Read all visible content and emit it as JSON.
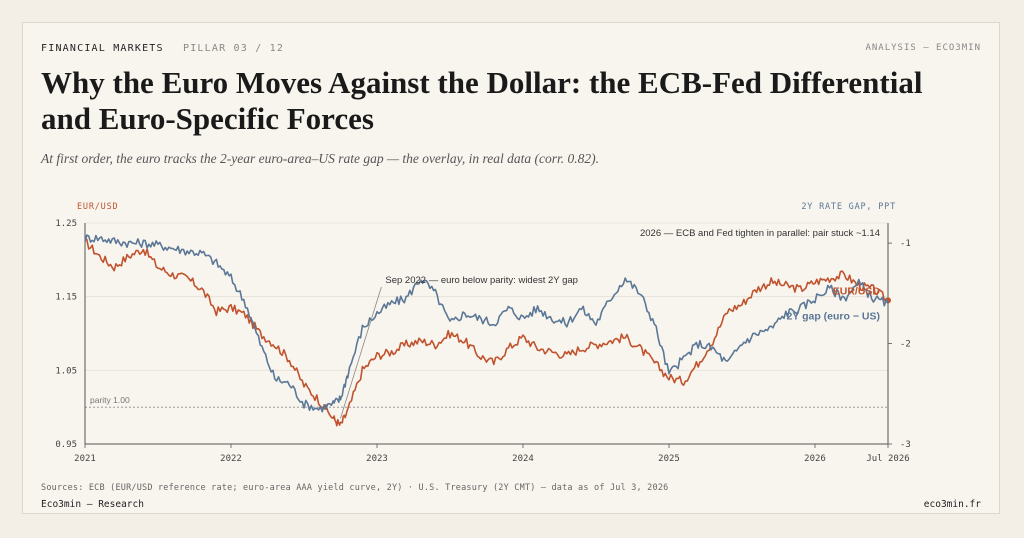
{
  "header": {
    "section": "FINANCIAL MARKETS",
    "pillar": "PILLAR 03 / 12",
    "analysis": "ANALYSIS — ECO3MIN"
  },
  "title": "Why the Euro Moves Against the Dollar: the ECB-Fed Differential and Euro-Specific Forces",
  "subtitle": "At first order, the euro tracks the 2-year euro-area–US rate gap — the overlay, in real data (corr. 0.82).",
  "footer": {
    "sources": "Sources: ECB (EUR/USD reference rate; euro-area AAA yield curve, 2Y) · U.S. Treasury (2Y CMT) — data as of Jul 3, 2026",
    "brand": "Eco3min — Research",
    "site": "eco3min.fr"
  },
  "colors": {
    "eurusd": "#c0532d",
    "gap": "#5b7796",
    "parity": "#8a8a8a"
  },
  "chart_data": {
    "type": "line",
    "left_axis_label": "EUR/USD",
    "right_axis_label": "2Y RATE GAP, PPT",
    "left_ylim": [
      0.95,
      1.25
    ],
    "right_ylim": [
      -3,
      -0.8
    ],
    "left_ticks": [
      "1.25",
      "1.15",
      "1.05",
      "0.95"
    ],
    "right_ticks": [
      "-1",
      "-2",
      "-3"
    ],
    "xlim": [
      2021.0,
      2026.5
    ],
    "x_ticks": [
      {
        "x": 2021,
        "label": "2021"
      },
      {
        "x": 2022,
        "label": "2022"
      },
      {
        "x": 2023,
        "label": "2023"
      },
      {
        "x": 2024,
        "label": "2024"
      },
      {
        "x": 2025,
        "label": "2025"
      },
      {
        "x": 2026,
        "label": "2026"
      },
      {
        "x": 2026.5,
        "label": "Jul 2026"
      }
    ],
    "parity": {
      "value": 1.0,
      "label": "parity 1.00"
    },
    "annotations": [
      {
        "text": "2026 — ECB and Fed tighten in parallel: pair stuck ~1.14"
      },
      {
        "text": "Sep 2022 — euro below parity: widest 2Y gap",
        "x": 2022.75,
        "y": 0.985
      }
    ],
    "series": [
      {
        "name": "EUR/USD",
        "axis": "left",
        "x": [
          2021.0,
          2021.1,
          2021.2,
          2021.3,
          2021.4,
          2021.5,
          2021.6,
          2021.7,
          2021.8,
          2021.9,
          2022.0,
          2022.1,
          2022.2,
          2022.3,
          2022.4,
          2022.5,
          2022.6,
          2022.7,
          2022.75,
          2022.8,
          2022.9,
          2023.0,
          2023.1,
          2023.2,
          2023.3,
          2023.4,
          2023.5,
          2023.6,
          2023.7,
          2023.8,
          2023.9,
          2024.0,
          2024.1,
          2024.2,
          2024.3,
          2024.4,
          2024.5,
          2024.6,
          2024.7,
          2024.8,
          2024.9,
          2025.0,
          2025.1,
          2025.2,
          2025.3,
          2025.4,
          2025.5,
          2025.6,
          2025.7,
          2025.8,
          2025.9,
          2026.0,
          2026.1,
          2026.2,
          2026.3,
          2026.4,
          2026.5
        ],
        "values": [
          1.225,
          1.205,
          1.19,
          1.205,
          1.215,
          1.19,
          1.18,
          1.175,
          1.16,
          1.13,
          1.135,
          1.125,
          1.1,
          1.085,
          1.065,
          1.03,
          1.01,
          0.985,
          0.975,
          0.995,
          1.05,
          1.07,
          1.075,
          1.085,
          1.09,
          1.085,
          1.1,
          1.09,
          1.07,
          1.06,
          1.08,
          1.095,
          1.08,
          1.075,
          1.07,
          1.08,
          1.085,
          1.09,
          1.095,
          1.08,
          1.06,
          1.04,
          1.035,
          1.06,
          1.09,
          1.13,
          1.14,
          1.16,
          1.17,
          1.165,
          1.16,
          1.17,
          1.175,
          1.18,
          1.165,
          1.16,
          1.145
        ]
      },
      {
        "name": "2Y gap (euro − US)",
        "axis": "right",
        "x": [
          2021.0,
          2021.1,
          2021.2,
          2021.3,
          2021.4,
          2021.5,
          2021.6,
          2021.7,
          2021.8,
          2021.9,
          2022.0,
          2022.1,
          2022.2,
          2022.3,
          2022.4,
          2022.5,
          2022.6,
          2022.7,
          2022.75,
          2022.8,
          2022.9,
          2023.0,
          2023.1,
          2023.2,
          2023.3,
          2023.4,
          2023.5,
          2023.6,
          2023.7,
          2023.8,
          2023.9,
          2024.0,
          2024.1,
          2024.2,
          2024.3,
          2024.4,
          2024.5,
          2024.6,
          2024.7,
          2024.8,
          2024.9,
          2025.0,
          2025.1,
          2025.2,
          2025.3,
          2025.4,
          2025.5,
          2025.6,
          2025.7,
          2025.8,
          2025.9,
          2026.0,
          2026.1,
          2026.2,
          2026.3,
          2026.4,
          2026.5
        ],
        "values": [
          -0.95,
          -0.95,
          -0.98,
          -1.0,
          -1.0,
          -1.02,
          -1.05,
          -1.08,
          -1.1,
          -1.2,
          -1.35,
          -1.6,
          -2.0,
          -2.35,
          -2.4,
          -2.6,
          -2.65,
          -2.6,
          -2.55,
          -2.3,
          -1.85,
          -1.7,
          -1.6,
          -1.55,
          -1.35,
          -1.5,
          -1.8,
          -1.7,
          -1.75,
          -1.8,
          -1.65,
          -1.75,
          -1.65,
          -1.75,
          -1.8,
          -1.65,
          -1.8,
          -1.55,
          -1.35,
          -1.5,
          -1.8,
          -2.3,
          -2.15,
          -2.0,
          -2.05,
          -2.2,
          -2.0,
          -1.9,
          -1.85,
          -1.7,
          -1.65,
          -1.55,
          -1.45,
          -1.55,
          -1.4,
          -1.55,
          -1.6
        ]
      }
    ],
    "series_labels": [
      {
        "text": "EUR/USD",
        "series": 0
      },
      {
        "text": "2Y gap (euro − US)",
        "series": 1
      }
    ]
  }
}
